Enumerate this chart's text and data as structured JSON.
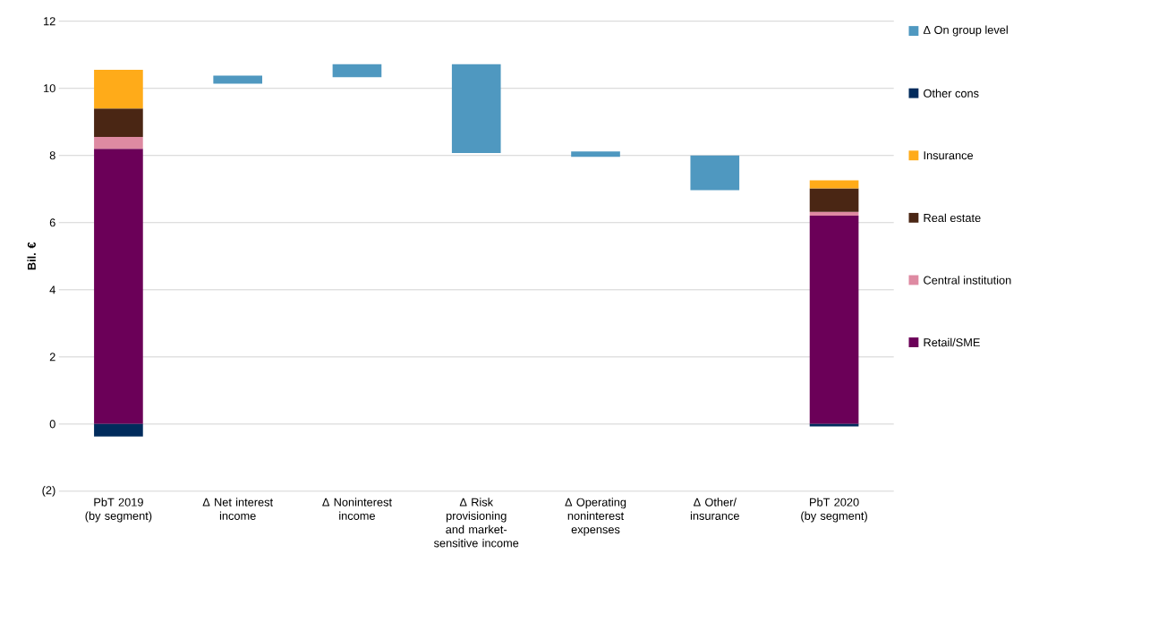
{
  "chart_data": {
    "type": "bar",
    "stacked": true,
    "ylabel": "Bil. €",
    "categories": [
      "PbT 2019 (by segment)",
      "Δ Net interest income",
      "Δ Noninterest income",
      "Δ Risk provisioning and market-sensitive income",
      "Δ Operating noninterest expenses",
      "Δ Other/ insurance",
      "PbT 2020 (by segment)"
    ],
    "series": [
      {
        "name": "Retail/SME",
        "color": "#6b0058",
        "values": [
          8.2,
          null,
          null,
          null,
          null,
          null,
          6.21
        ]
      },
      {
        "name": "Central institution",
        "color": "#de8aa2",
        "values": [
          0.35,
          null,
          null,
          null,
          null,
          null,
          0.11
        ]
      },
      {
        "name": "Real estate",
        "color": "#4a2614",
        "values": [
          0.85,
          null,
          null,
          null,
          null,
          null,
          0.7
        ]
      },
      {
        "name": "Insurance",
        "color": "#ffab19",
        "values": [
          1.15,
          null,
          null,
          null,
          null,
          null,
          0.24
        ]
      },
      {
        "name": "Other cons",
        "color": "#002b5c",
        "values": [
          -0.37,
          null,
          null,
          null,
          null,
          null,
          -0.07
        ]
      },
      {
        "name": "Δ On group level",
        "color": "#4f98c0",
        "values": [
          null,
          0.24,
          0.39,
          2.65,
          0.16,
          1.03,
          null
        ],
        "base": [
          null,
          10.14,
          10.33,
          8.07,
          7.96,
          6.97,
          null
        ]
      }
    ],
    "ylim": [
      -2,
      12
    ],
    "yticks": [
      {
        "value": -2,
        "label": "(2)"
      },
      0,
      2,
      4,
      6,
      8,
      10,
      12
    ],
    "grid": "y",
    "legend": "right"
  }
}
